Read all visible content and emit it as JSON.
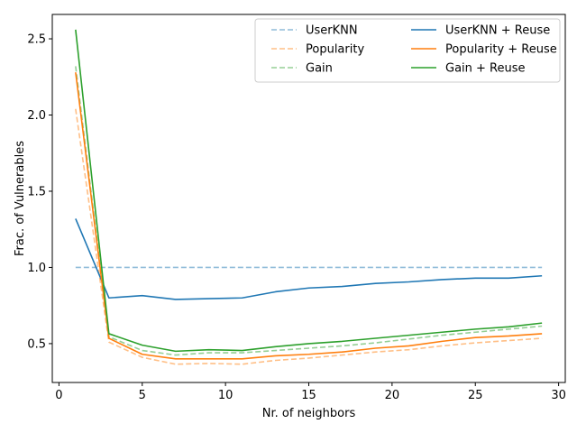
{
  "chart_data": {
    "type": "line",
    "xlabel": "Nr. of neighbors",
    "ylabel": "Frac. of Vulnerables",
    "xlim": [
      -0.4,
      30.4
    ],
    "ylim": [
      0.245,
      2.66
    ],
    "xticks": [
      0,
      5,
      10,
      15,
      20,
      25,
      30
    ],
    "yticks": [
      0.5,
      1.0,
      1.5,
      2.0,
      2.5
    ],
    "xtick_labels": [
      "0",
      "5",
      "10",
      "15",
      "20",
      "25",
      "30"
    ],
    "ytick_labels": [
      "0.5",
      "1.0",
      "1.5",
      "2.0",
      "2.5"
    ],
    "legend_position": "upper right",
    "legend_columns": 2,
    "x": [
      1,
      3,
      5,
      7,
      9,
      11,
      13,
      15,
      17,
      19,
      21,
      23,
      25,
      27,
      29
    ],
    "series": [
      {
        "name": "UserKNN",
        "dashed": true,
        "color": "#1f77b4",
        "values": [
          1.0,
          1.0,
          1.0,
          1.0,
          1.0,
          1.0,
          1.0,
          1.0,
          1.0,
          1.0,
          1.0,
          1.0,
          1.0,
          1.0,
          1.0
        ]
      },
      {
        "name": "Popularity",
        "dashed": true,
        "color": "#ff7f0e",
        "values": [
          2.04,
          0.51,
          0.41,
          0.365,
          0.37,
          0.365,
          0.39,
          0.405,
          0.425,
          0.445,
          0.46,
          0.485,
          0.505,
          0.52,
          0.535
        ]
      },
      {
        "name": "Gain",
        "dashed": true,
        "color": "#2ca02c",
        "values": [
          2.32,
          0.545,
          0.455,
          0.425,
          0.44,
          0.44,
          0.455,
          0.47,
          0.485,
          0.505,
          0.53,
          0.555,
          0.575,
          0.595,
          0.615
        ]
      },
      {
        "name": "UserKNN + Reuse",
        "dashed": false,
        "color": "#1f77b4",
        "values": [
          1.32,
          0.8,
          0.815,
          0.79,
          0.795,
          0.8,
          0.84,
          0.865,
          0.875,
          0.895,
          0.905,
          0.92,
          0.93,
          0.93,
          0.945
        ]
      },
      {
        "name": "Popularity + Reuse",
        "dashed": false,
        "color": "#ff7f0e",
        "values": [
          2.28,
          0.535,
          0.43,
          0.4,
          0.4,
          0.4,
          0.42,
          0.43,
          0.445,
          0.47,
          0.485,
          0.515,
          0.54,
          0.55,
          0.565
        ]
      },
      {
        "name": "Gain + Reuse",
        "dashed": false,
        "color": "#2ca02c",
        "values": [
          2.56,
          0.565,
          0.49,
          0.45,
          0.46,
          0.455,
          0.48,
          0.5,
          0.515,
          0.535,
          0.555,
          0.575,
          0.595,
          0.61,
          0.635
        ]
      }
    ]
  }
}
